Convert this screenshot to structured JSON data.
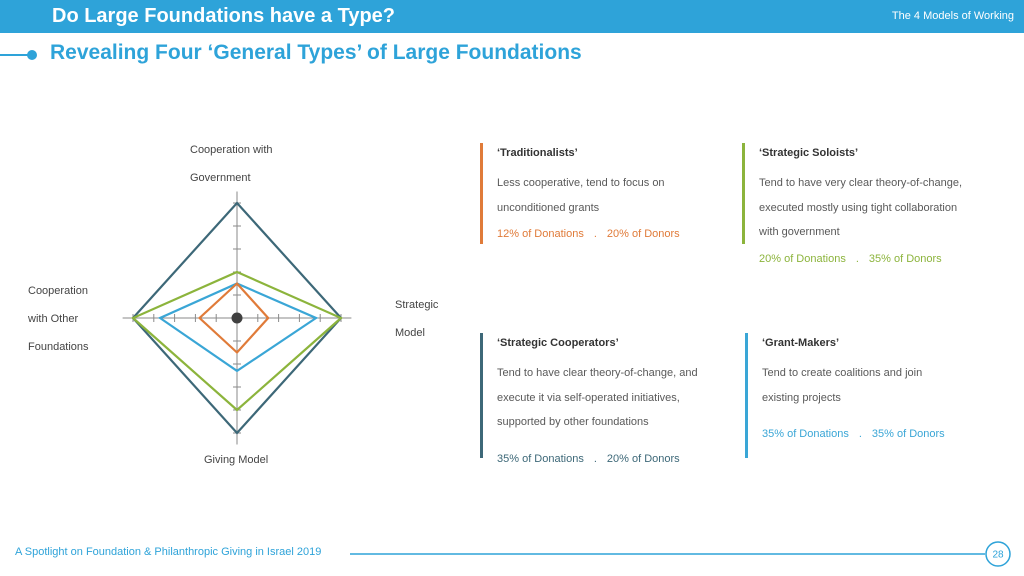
{
  "header": {
    "title": "Do Large Foundations have a Type?",
    "section": "The 4 Models of Working",
    "subtitle": "Revealing Four ‘General Types’ of Large Foundations"
  },
  "chart_data": {
    "type": "radar",
    "axes": [
      [
        "Cooperation with",
        "Government"
      ],
      [
        "Strategic",
        "Model"
      ],
      [
        "Giving Model"
      ],
      [
        "Cooperation",
        "with Other",
        "Foundations"
      ]
    ],
    "rlim": [
      0,
      5.5
    ],
    "rticks": [
      1,
      2,
      3,
      4,
      5
    ],
    "series": [
      {
        "color": "#3d6878",
        "values": [
          5,
          5,
          5,
          5
        ]
      },
      {
        "color": "#8cb43c",
        "values": [
          2,
          5,
          4,
          5
        ]
      },
      {
        "color": "#3aa6d6",
        "values": [
          1.5,
          3.8,
          2.3,
          3.7
        ]
      },
      {
        "color": "#e07b39",
        "values": [
          1.5,
          1.5,
          1.5,
          1.8
        ]
      }
    ]
  },
  "cards": [
    {
      "title": "‘Traditionalists’",
      "lines": [
        "Less cooperative, tend to focus on",
        "unconditioned  grants"
      ],
      "donations": "12% of Donations",
      "separator": ".",
      "donors": "20% of Donors",
      "color": "#e07b39"
    },
    {
      "title": "‘Strategic Soloists’",
      "lines": [
        "Tend to have very clear theory-of-change,",
        "executed mostly using tight collaboration",
        "with government"
      ],
      "donations": "20% of Donations",
      "separator": ".",
      "donors": "35%  of Donors",
      "color": "#8cb43c"
    },
    {
      "title": "‘Strategic Cooperators’",
      "lines": [
        "Tend to have clear theory-of-change, and",
        "execute it via self-operated initiatives,",
        "supported by other foundations"
      ],
      "donations": "35% of Donations",
      "separator": ".",
      "donors": "20% of Donors",
      "color": "#3d6878"
    },
    {
      "title": "‘Grant-Makers’",
      "lines": [
        "Tend to create coalitions and join",
        "existing projects"
      ],
      "donations": "35% of Donations",
      "separator": ".",
      "donors": "35% of Donors",
      "color": "#3aa6d6"
    }
  ],
  "footer": {
    "text": "A Spotlight on Foundation & Philanthropic Giving in Israel 2019",
    "page": "28"
  }
}
